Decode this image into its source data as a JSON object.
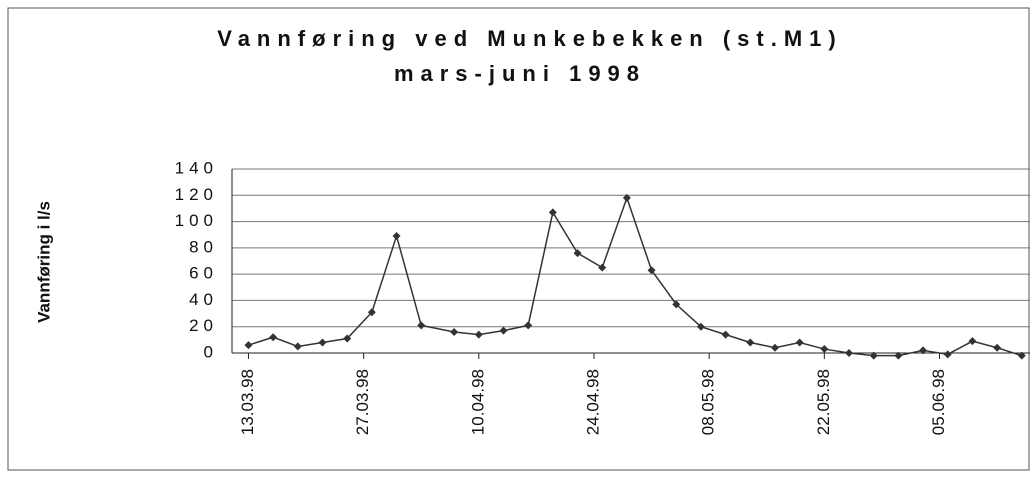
{
  "chart_data": {
    "type": "line",
    "title": "Vannføring ved Munkebekken (st.M1)",
    "subtitle": "mars-juni 1998",
    "y_label": "Vannføring i l/s",
    "x": [
      "13.03.98",
      "16.03.98",
      "19.03.98",
      "22.03.98",
      "25.03.98",
      "28.03.98",
      "31.03.98",
      "03.04.98",
      "07.04.98",
      "10.04.98",
      "13.04.98",
      "16.04.98",
      "19.04.98",
      "22.04.98",
      "25.04.98",
      "28.04.98",
      "01.05.98",
      "04.05.98",
      "07.05.98",
      "10.05.98",
      "13.05.98",
      "16.05.98",
      "19.05.98",
      "22.05.98",
      "25.05.98",
      "28.05.98",
      "31.05.98",
      "03.06.98",
      "06.06.98",
      "09.06.98",
      "12.06.98",
      "15.06.98"
    ],
    "series": [
      {
        "name": "Vannføring",
        "color": "#333333",
        "values": [
          6,
          12,
          5,
          8,
          11,
          31,
          89,
          21,
          16,
          14,
          17,
          21,
          107,
          76,
          65,
          118,
          63,
          37,
          20,
          14,
          8,
          4,
          8,
          3,
          0,
          -2,
          -2,
          2,
          -1,
          9,
          4,
          -2
        ]
      }
    ],
    "xlim": [
      "11.03.98",
      "16.06.98"
    ],
    "xticks": [
      "13.03.98",
      "27.03.98",
      "10.04.98",
      "24.04.98",
      "08.05.98",
      "22.05.98",
      "05.06.98"
    ],
    "ylim": [
      0,
      140
    ],
    "yticks": [
      0,
      20,
      40,
      60,
      80,
      100,
      120,
      140
    ],
    "grid": true
  }
}
